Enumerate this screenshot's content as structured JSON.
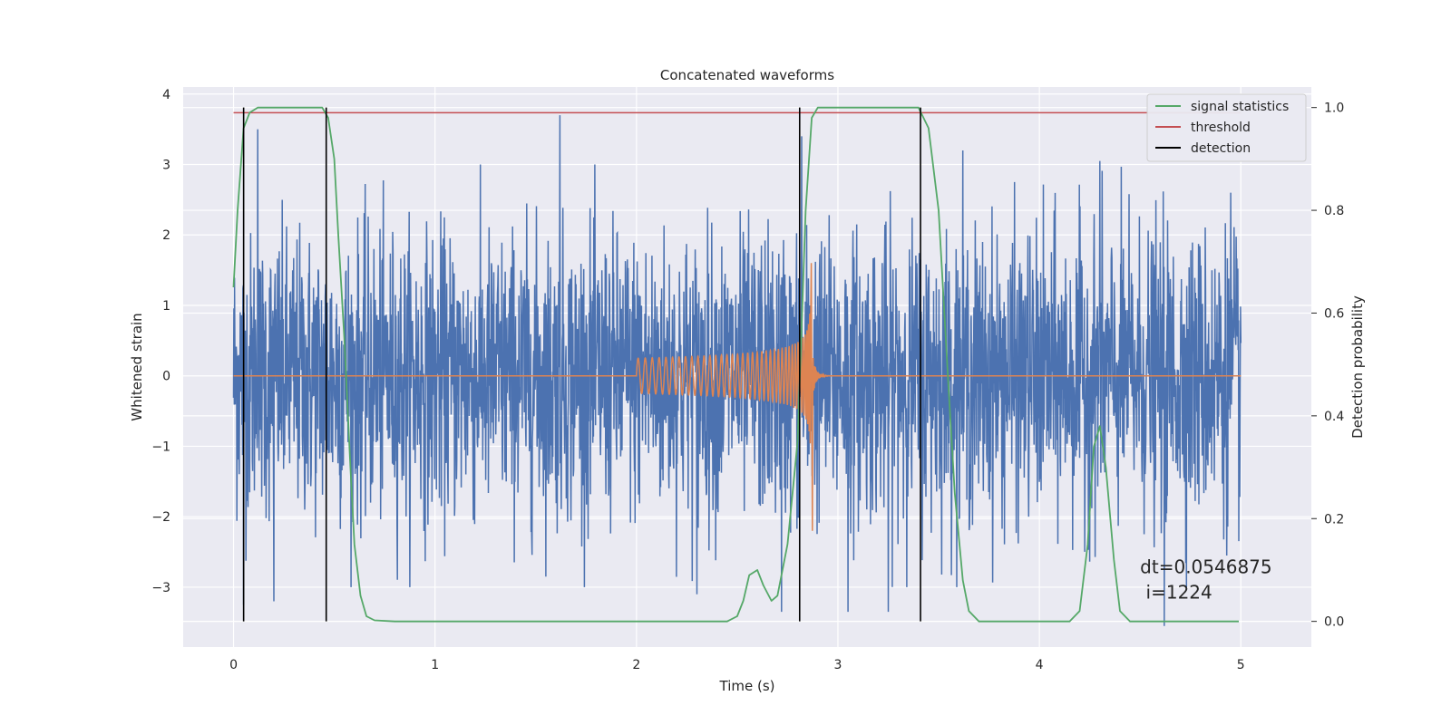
{
  "chart_data": {
    "type": "line",
    "title": "Concatenated waveforms",
    "xlabel": "Time (s)",
    "ylabel": "Whitened strain",
    "ylabel_right": "Detection probability",
    "xlim": [
      -0.25,
      5.35
    ],
    "ylim": [
      -3.85,
      4.1
    ],
    "ylim_right": [
      -0.05,
      1.04
    ],
    "xticks": [
      0,
      1,
      2,
      3,
      4,
      5
    ],
    "yticks": [
      -3,
      -2,
      -1,
      0,
      1,
      2,
      3,
      4
    ],
    "yticks_right": [
      0.0,
      0.2,
      0.4,
      0.6,
      0.8,
      1.0
    ],
    "yticks_right_labels": [
      "0.0",
      "0.2",
      "0.4",
      "0.6",
      "0.8",
      "1.0"
    ],
    "tick_labels": {
      "x": [
        "0",
        "1",
        "2",
        "3",
        "4",
        "5"
      ],
      "y": [
        "−3",
        "−2",
        "−1",
        "0",
        "1",
        "2",
        "3",
        "4"
      ]
    },
    "grid": true,
    "legend_position": "top-right",
    "series": [
      {
        "name": "",
        "kind": "noise-strain",
        "axis": "left",
        "color": "#4c72b0",
        "x_range": [
          0,
          5
        ],
        "typical_amplitude": 1.0,
        "peak_points": [
          [
            0.05,
            -3.25
          ],
          [
            0.12,
            3.5
          ],
          [
            0.2,
            3.65
          ],
          [
            0.2,
            -3.2
          ],
          [
            1.62,
            3.7
          ],
          [
            2.3,
            -3.1
          ],
          [
            2.72,
            -3.35
          ],
          [
            2.82,
            3.4
          ],
          [
            3.05,
            -3.35
          ],
          [
            3.25,
            -3.35
          ],
          [
            3.62,
            3.2
          ],
          [
            4.3,
            3.05
          ],
          [
            4.62,
            -3.55
          ],
          [
            4.95,
            2.6
          ]
        ]
      },
      {
        "name": "",
        "kind": "chirp-template",
        "axis": "left",
        "color": "#dd8452",
        "x_range": [
          0,
          5
        ],
        "chirp_start": 2.0,
        "merger_time": 2.865,
        "start_amplitude": 0.25,
        "peak_positive": 1.6,
        "peak_negative": -2.2
      },
      {
        "name": "signal statistics",
        "axis": "right",
        "color": "#55a868",
        "x": [
          0.0,
          0.02,
          0.05,
          0.08,
          0.12,
          0.2,
          0.3,
          0.44,
          0.47,
          0.5,
          0.52,
          0.55,
          0.58,
          0.6,
          0.63,
          0.66,
          0.7,
          0.8,
          1.0,
          2.0,
          2.45,
          2.5,
          2.53,
          2.56,
          2.6,
          2.63,
          2.67,
          2.7,
          2.75,
          2.8,
          2.84,
          2.87,
          2.9,
          3.0,
          3.2,
          3.4,
          3.45,
          3.5,
          3.55,
          3.58,
          3.62,
          3.65,
          3.7,
          3.8,
          4.0,
          4.15,
          4.2,
          4.24,
          4.27,
          4.3,
          4.33,
          4.37,
          4.4,
          4.45,
          4.6,
          4.8,
          4.99
        ],
        "y": [
          0.65,
          0.8,
          0.96,
          0.99,
          1.0,
          1.0,
          1.0,
          1.0,
          0.98,
          0.9,
          0.75,
          0.55,
          0.3,
          0.15,
          0.05,
          0.01,
          0.002,
          0.0,
          0.0,
          0.0,
          0.0,
          0.01,
          0.04,
          0.09,
          0.1,
          0.07,
          0.04,
          0.05,
          0.15,
          0.35,
          0.8,
          0.98,
          1.0,
          1.0,
          1.0,
          1.0,
          0.96,
          0.8,
          0.45,
          0.25,
          0.08,
          0.02,
          0.0,
          0.0,
          0.0,
          0.0,
          0.02,
          0.15,
          0.34,
          0.38,
          0.3,
          0.12,
          0.02,
          0.0,
          0.0,
          0.0,
          0.0
        ]
      },
      {
        "name": "threshold",
        "axis": "right",
        "color": "#c44e52",
        "x": [
          0,
          5
        ],
        "y": [
          0.99,
          0.99
        ]
      },
      {
        "name": "detection",
        "axis": "right",
        "color": "#000000",
        "vlines": [
          0.05,
          0.46,
          2.81,
          3.41
        ],
        "ymin": 0.0,
        "ymax": 1.0
      }
    ],
    "annotation": {
      "line1": "dt=0.0546875",
      "line2": " i=1224",
      "x": 4.5,
      "y": -2.8
    }
  }
}
